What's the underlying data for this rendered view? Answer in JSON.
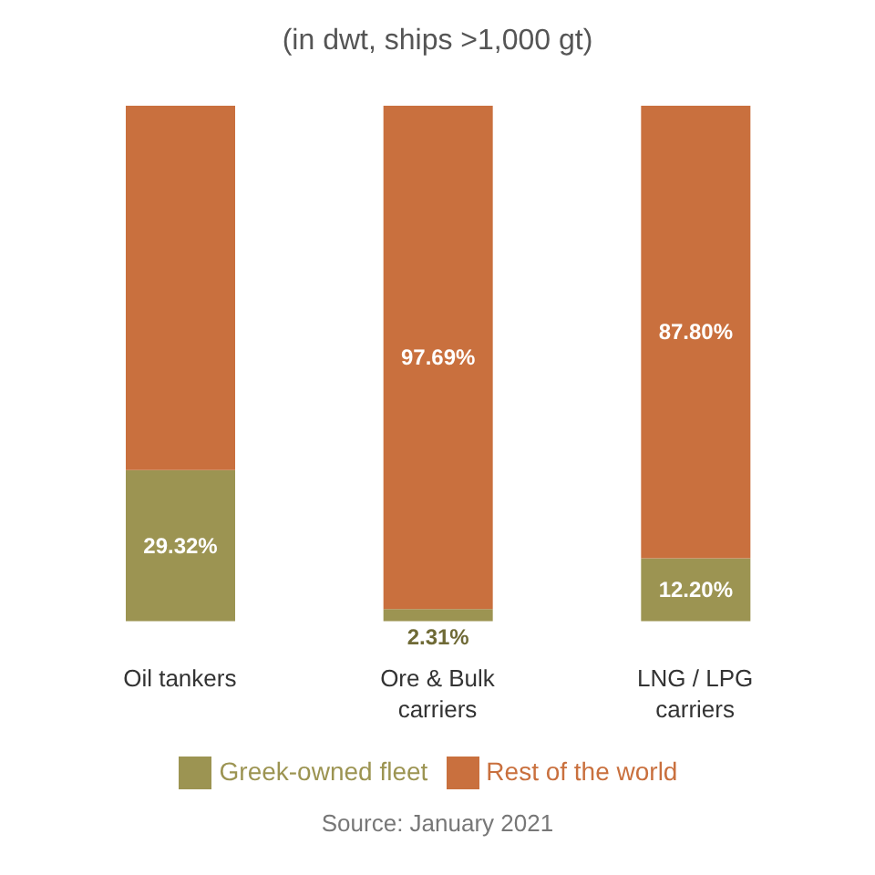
{
  "chart_data": {
    "type": "bar",
    "subtitle": "(in dwt, ships >1,000 gt)",
    "stacked": true,
    "categories": [
      "Oil tankers",
      "Ore & Bulk carriers",
      "LNG / LPG carriers"
    ],
    "series": [
      {
        "name": "Greek-owned fleet",
        "color": "#9c9452",
        "values": [
          29.32,
          2.31,
          12.2
        ],
        "value_labels": [
          "29.32%",
          "2.31%",
          "12.20%"
        ]
      },
      {
        "name": "Rest of the world",
        "color": "#c9703e",
        "values": [
          70.68,
          97.69,
          87.8
        ],
        "value_labels": [
          null,
          "97.69%",
          "87.80%"
        ]
      }
    ],
    "legend": "bottom",
    "annotations": [
      "Source: January 2021"
    ]
  }
}
